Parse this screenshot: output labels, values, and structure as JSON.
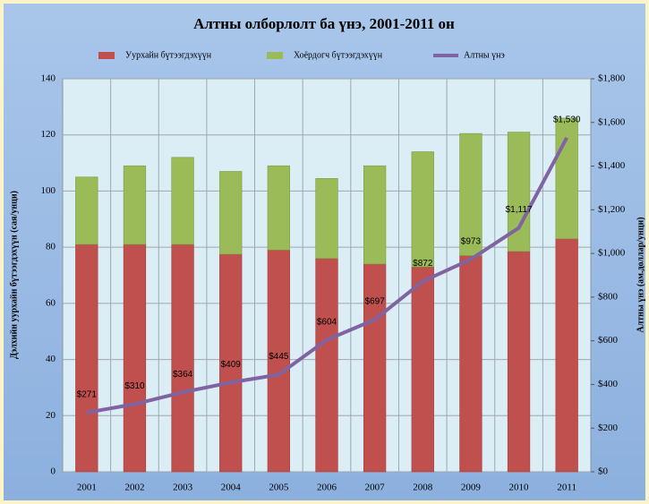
{
  "chart_data": {
    "type": "bar",
    "stacked": true,
    "title": "Алтны олборлолт ба үнэ, 2001-2011 он",
    "ylabel": "Дэлхийн уурхайн бүтээгдэхүүн (сая/унци)",
    "y2label": "Алтны үнэ (ам.доллар/унци)",
    "categories": [
      "2001",
      "2002",
      "2003",
      "2004",
      "2005",
      "2006",
      "2007",
      "2008",
      "2009",
      "2010",
      "2011"
    ],
    "series": [
      {
        "name": "Уурхайн бүтээгдэхүүн",
        "color": "#c0504d",
        "values": [
          81,
          81,
          81,
          77.5,
          79,
          76,
          74,
          73,
          77,
          78.5,
          83
        ]
      },
      {
        "name": "Хоёрдогч бүтээгдэхүүн",
        "color": "#9bbb59",
        "values": [
          24,
          28,
          31,
          29.5,
          30,
          28.5,
          35,
          41,
          43.5,
          42.5,
          43
        ]
      },
      {
        "name": "Алтны үнэ",
        "color": "#8064a2",
        "type": "line",
        "axis": "y2",
        "values": [
          271,
          310,
          364,
          409,
          445,
          604,
          697,
          872,
          973,
          1117,
          1530
        ],
        "value_labels": [
          "$271",
          "$310",
          "$364",
          "$409",
          "$445",
          "$604",
          "$697",
          "$872",
          "$973",
          "$1,117",
          "$1,530"
        ]
      }
    ],
    "ylim": [
      0,
      140
    ],
    "yticks": [
      0,
      20,
      40,
      60,
      80,
      100,
      120,
      140
    ],
    "y2lim": [
      0,
      1800
    ],
    "y2ticks": [
      {
        "value": 0,
        "label": "$0"
      },
      {
        "value": 200,
        "label": "$200"
      },
      {
        "value": 400,
        "label": "$400"
      },
      {
        "value": 600,
        "label": "$600"
      },
      {
        "value": 800,
        "label": "$800"
      },
      {
        "value": 1000,
        "label": "$1,000"
      },
      {
        "value": 1200,
        "label": "$1,200"
      },
      {
        "value": 1400,
        "label": "$1,400"
      },
      {
        "value": 1600,
        "label": "$1,600"
      },
      {
        "value": 1800,
        "label": "$1,800"
      }
    ],
    "grid": true
  }
}
